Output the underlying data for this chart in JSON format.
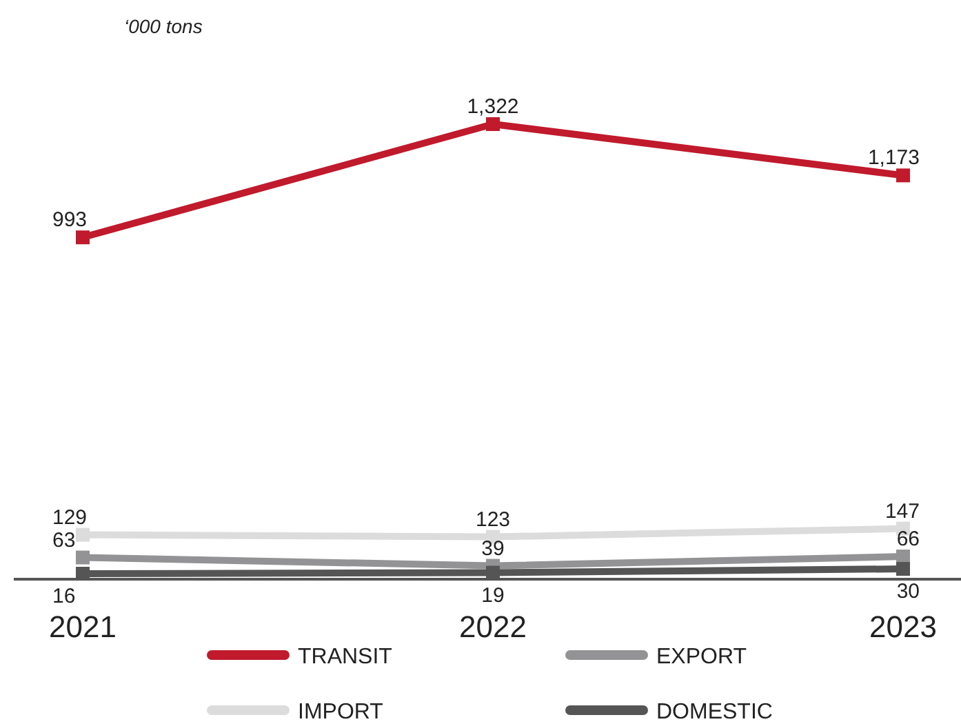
{
  "chart_data": {
    "type": "line",
    "ylabel": "‘000 tons",
    "categories": [
      "2021",
      "2022",
      "2023"
    ],
    "series": [
      {
        "name": "TRANSIT",
        "color": "#c01a2c",
        "values": [
          993,
          1322,
          1173
        ],
        "value_labels": [
          "993",
          "1,322",
          "1,173"
        ]
      },
      {
        "name": "EXPORT",
        "color": "#939395",
        "values": [
          63,
          39,
          66
        ],
        "value_labels": [
          "63",
          "39",
          "66"
        ]
      },
      {
        "name": "IMPORT",
        "color": "#dcdcdc",
        "values": [
          129,
          123,
          147
        ],
        "value_labels": [
          "129",
          "123",
          "147"
        ]
      },
      {
        "name": "DOMESTIC",
        "color": "#555555",
        "values": [
          16,
          19,
          30
        ],
        "value_labels": [
          "16",
          "19",
          "30"
        ]
      }
    ],
    "marker": "square",
    "line_style": "solid",
    "legend": "bottom"
  }
}
